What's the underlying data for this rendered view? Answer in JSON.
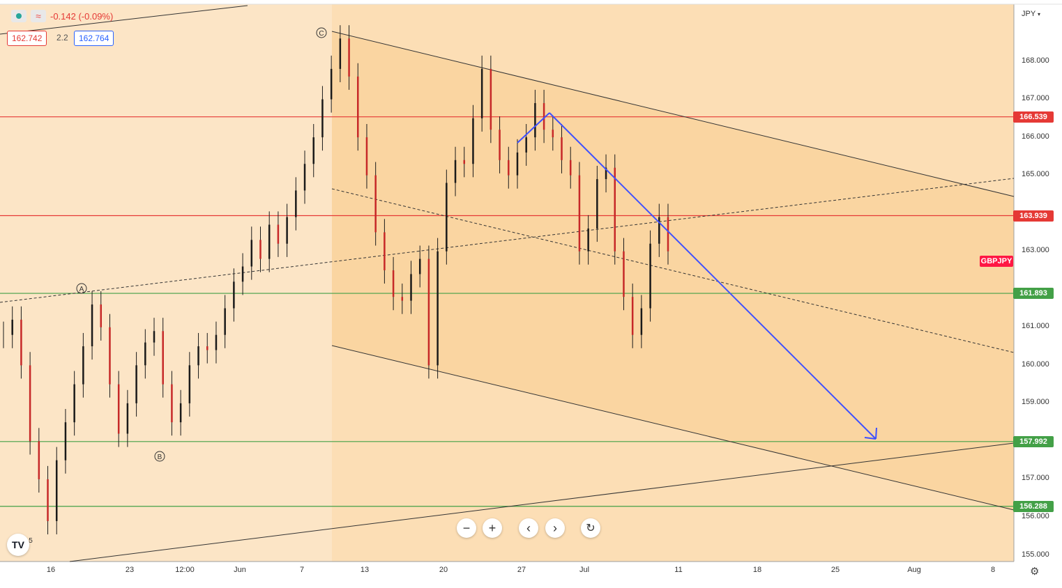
{
  "header": {
    "change_text": "-0.142 (-0.09%)",
    "bid_price": "162.742",
    "spread": "2.2",
    "ask_price": "162.764",
    "colors": {
      "up_dot": "#26a69a",
      "indicator_icon": "#ef5350",
      "down_text": "#e53935",
      "ask_border": "#2962ff"
    }
  },
  "axis": {
    "currency_menu": "JPY",
    "y_ticks": [
      "168.000",
      "167.000",
      "166.000",
      "165.000",
      "163.000",
      "161.000",
      "160.000",
      "159.000",
      "157.000",
      "156.000",
      "155.000"
    ],
    "x_ticks": [
      "16",
      "23",
      "12:00",
      "Jun",
      "7",
      "13",
      "20",
      "27",
      "Jul",
      "11",
      "18",
      "25",
      "Aug",
      "8"
    ]
  },
  "price_labels": [
    {
      "text": "166.539",
      "color": "#e53935"
    },
    {
      "text": "163.939",
      "color": "#e53935"
    },
    {
      "text": "161.893",
      "color": "#43a047"
    },
    {
      "text": "157.992",
      "color": "#43a047"
    },
    {
      "text": "156.288",
      "color": "#43a047"
    }
  ],
  "symbol_label": {
    "text": "GBPJPY",
    "color": "#ff1744"
  },
  "wave_labels": [
    "A",
    "B",
    "C",
    "5"
  ],
  "horizontal_lines": [
    {
      "price": 166.539,
      "color": "#e53935"
    },
    {
      "price": 163.939,
      "color": "#e53935"
    },
    {
      "price": 161.893,
      "color": "#43a047"
    },
    {
      "price": 157.992,
      "color": "#43a047"
    },
    {
      "price": 156.288,
      "color": "#43a047"
    }
  ],
  "chart_data": {
    "type": "line",
    "symbol": "GBPJPY",
    "price_range": [
      155.0,
      168.8
    ],
    "series": [
      {
        "name": "GBPJPY",
        "values": [
          160.8,
          161.2,
          160.0,
          158.0,
          157.0,
          155.9,
          157.5,
          158.5,
          159.5,
          160.5,
          161.6,
          161.0,
          159.5,
          158.2,
          159.0,
          160.0,
          160.6,
          160.9,
          159.5,
          158.5,
          159.0,
          160.0,
          160.5,
          160.4,
          160.8,
          161.5,
          162.2,
          162.6,
          163.3,
          162.8,
          163.7,
          163.2,
          163.9,
          164.6,
          165.3,
          166.0,
          167.0,
          167.8,
          168.6,
          167.6,
          166.0,
          165.0,
          163.5,
          162.5,
          161.8,
          161.7,
          162.4,
          162.8,
          160.0,
          163.0,
          164.8,
          165.4,
          165.3,
          166.5,
          167.8,
          166.2,
          165.4,
          165.0,
          165.6,
          166.0,
          166.9,
          166.2,
          166.0,
          165.4,
          165.0,
          163.0,
          163.6,
          164.9,
          165.2,
          163.0,
          161.8,
          160.8,
          161.5,
          163.2,
          163.9,
          163.0
        ]
      }
    ],
    "wave_points": [
      {
        "label": "A",
        "price": 161.95
      },
      {
        "label": "B",
        "price": 157.9
      },
      {
        "label": "C",
        "price": 168.8
      }
    ],
    "projection": {
      "from": 166.6,
      "to": 158.0,
      "color": "#3f51ff"
    }
  },
  "toolbar": {
    "zoom_out": "−",
    "zoom_in": "+",
    "scroll_left": "‹",
    "scroll_right": "›",
    "reset_icon": "reset-icon"
  }
}
